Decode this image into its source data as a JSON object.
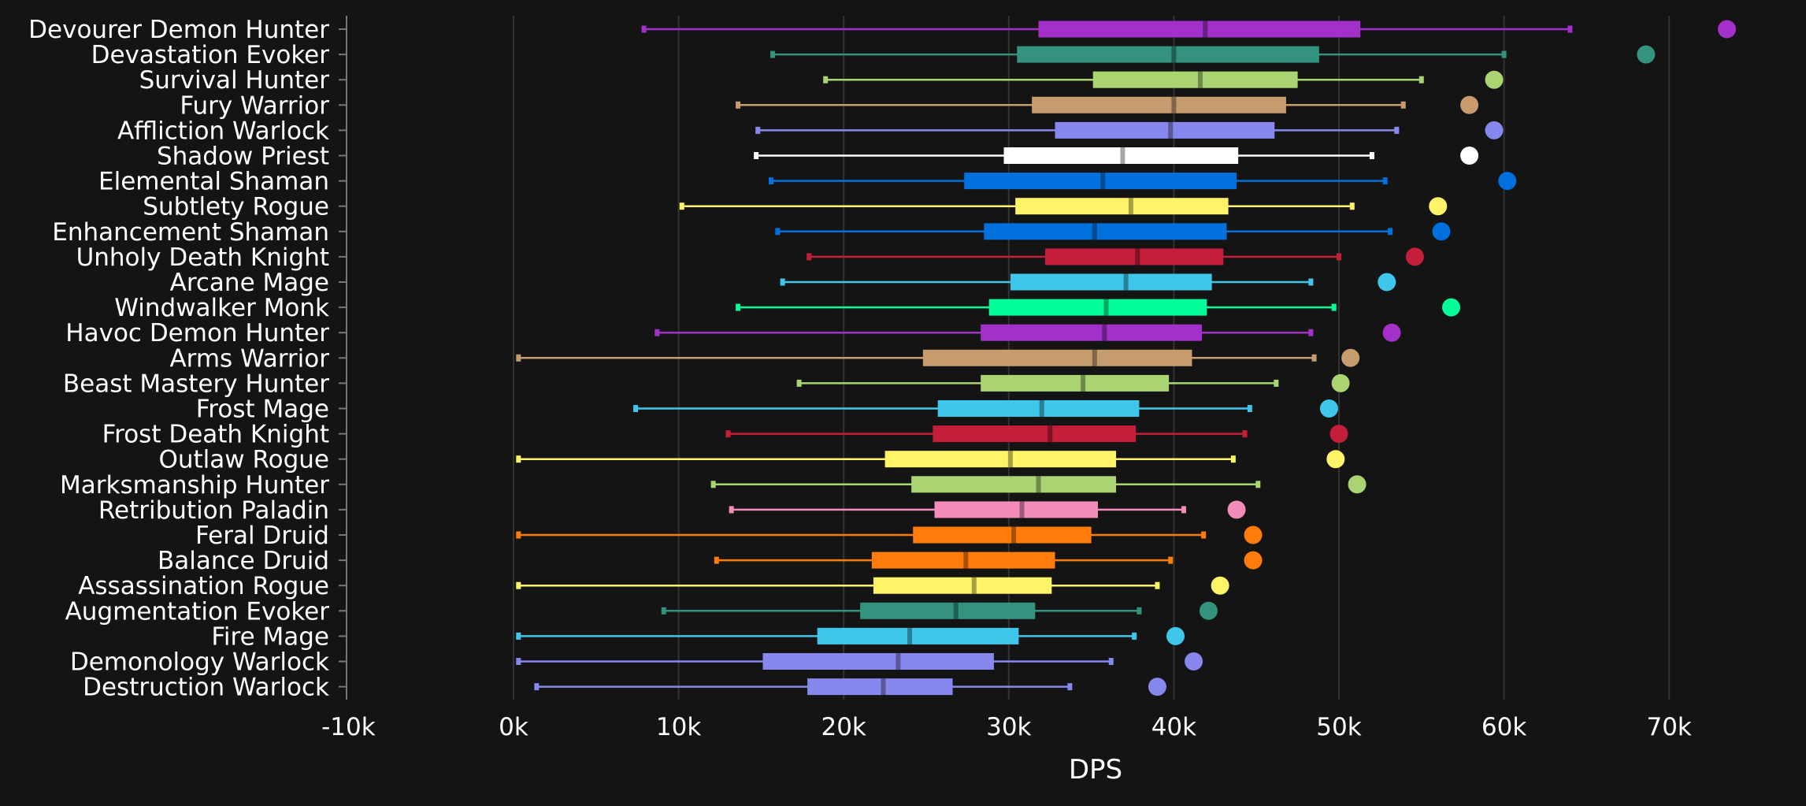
{
  "chart_data": {
    "type": "box",
    "xlabel": "DPS",
    "xlim": [
      -10000,
      75000
    ],
    "x_ticks": [
      -10000,
      0,
      10000,
      20000,
      30000,
      40000,
      50000,
      60000,
      70000
    ],
    "x_tick_labels": [
      "-10k",
      "0k",
      "10k",
      "20k",
      "30k",
      "40k",
      "50k",
      "60k",
      "70k"
    ],
    "grid": "vertical",
    "series": [
      {
        "name": "Devourer Demon Hunter",
        "color": "#A330C9",
        "min": 7900,
        "q1": 31800,
        "median": 41900,
        "q3": 51300,
        "max": 64000,
        "outlier": 73500
      },
      {
        "name": "Devastation Evoker",
        "color": "#33937F",
        "min": 15700,
        "q1": 30500,
        "median": 40000,
        "q3": 48800,
        "max": 60000,
        "outlier": 68600
      },
      {
        "name": "Survival Hunter",
        "color": "#AAD372",
        "min": 18900,
        "q1": 35100,
        "median": 41600,
        "q3": 47500,
        "max": 55000,
        "outlier": 59400
      },
      {
        "name": "Fury Warrior",
        "color": "#C69B6D",
        "min": 13600,
        "q1": 31400,
        "median": 40000,
        "q3": 46800,
        "max": 53900,
        "outlier": 57900
      },
      {
        "name": "Affliction Warlock",
        "color": "#8788EE",
        "min": 14800,
        "q1": 32800,
        "median": 39800,
        "q3": 46100,
        "max": 53500,
        "outlier": 59400
      },
      {
        "name": "Shadow Priest",
        "color": "#FFFFFF",
        "min": 14700,
        "q1": 29700,
        "median": 36900,
        "q3": 43900,
        "max": 52000,
        "outlier": 57900
      },
      {
        "name": "Elemental Shaman",
        "color": "#0070DD",
        "min": 15600,
        "q1": 27300,
        "median": 35700,
        "q3": 43800,
        "max": 52800,
        "outlier": 60200
      },
      {
        "name": "Subtlety Rogue",
        "color": "#FFF468",
        "min": 10200,
        "q1": 30400,
        "median": 37400,
        "q3": 43300,
        "max": 50800,
        "outlier": 56000
      },
      {
        "name": "Enhancement Shaman",
        "color": "#0070DD",
        "min": 16000,
        "q1": 28500,
        "median": 35200,
        "q3": 43200,
        "max": 53100,
        "outlier": 56200
      },
      {
        "name": "Unholy Death Knight",
        "color": "#C41E3A",
        "min": 17900,
        "q1": 32200,
        "median": 37800,
        "q3": 43000,
        "max": 50000,
        "outlier": 54600
      },
      {
        "name": "Arcane Mage",
        "color": "#3FC7EB",
        "min": 16300,
        "q1": 30100,
        "median": 37100,
        "q3": 42300,
        "max": 48300,
        "outlier": 52900
      },
      {
        "name": "Windwalker Monk",
        "color": "#00FF98",
        "min": 13600,
        "q1": 28800,
        "median": 35900,
        "q3": 42000,
        "max": 49700,
        "outlier": 56800
      },
      {
        "name": "Havoc Demon Hunter",
        "color": "#A330C9",
        "min": 8700,
        "q1": 28300,
        "median": 35800,
        "q3": 41700,
        "max": 48300,
        "outlier": 53200
      },
      {
        "name": "Arms Warrior",
        "color": "#C69B6D",
        "min": 300,
        "q1": 24800,
        "median": 35200,
        "q3": 41100,
        "max": 48500,
        "outlier": 50700
      },
      {
        "name": "Beast Mastery Hunter",
        "color": "#AAD372",
        "min": 17300,
        "q1": 28300,
        "median": 34500,
        "q3": 39700,
        "max": 46200,
        "outlier": 50100
      },
      {
        "name": "Frost Mage",
        "color": "#3FC7EB",
        "min": 7400,
        "q1": 25700,
        "median": 32000,
        "q3": 37900,
        "max": 44600,
        "outlier": 49400
      },
      {
        "name": "Frost Death Knight",
        "color": "#C41E3A",
        "min": 13000,
        "q1": 25400,
        "median": 32500,
        "q3": 37700,
        "max": 44300,
        "outlier": 50000
      },
      {
        "name": "Outlaw Rogue",
        "color": "#FFF468",
        "min": 300,
        "q1": 22500,
        "median": 30100,
        "q3": 36500,
        "max": 43600,
        "outlier": 49800
      },
      {
        "name": "Marksmanship Hunter",
        "color": "#AAD372",
        "min": 12100,
        "q1": 24100,
        "median": 31800,
        "q3": 36500,
        "max": 45100,
        "outlier": 51100
      },
      {
        "name": "Retribution Paladin",
        "color": "#F48CBA",
        "min": 13200,
        "q1": 25500,
        "median": 30800,
        "q3": 35400,
        "max": 40600,
        "outlier": 43800
      },
      {
        "name": "Feral Druid",
        "color": "#FF7C0A",
        "min": 300,
        "q1": 24200,
        "median": 30300,
        "q3": 35000,
        "max": 41800,
        "outlier": 44800
      },
      {
        "name": "Balance Druid",
        "color": "#FF7C0A",
        "min": 12300,
        "q1": 21700,
        "median": 27400,
        "q3": 32800,
        "max": 39800,
        "outlier": 44800
      },
      {
        "name": "Assassination Rogue",
        "color": "#FFF468",
        "min": 300,
        "q1": 21800,
        "median": 27900,
        "q3": 32600,
        "max": 39000,
        "outlier": 42800
      },
      {
        "name": "Augmentation Evoker",
        "color": "#33937F",
        "min": 9100,
        "q1": 21000,
        "median": 26800,
        "q3": 31600,
        "max": 37900,
        "outlier": 42100
      },
      {
        "name": "Fire Mage",
        "color": "#3FC7EB",
        "min": 300,
        "q1": 18400,
        "median": 24000,
        "q3": 30600,
        "max": 37600,
        "outlier": 40100
      },
      {
        "name": "Demonology Warlock",
        "color": "#8788EE",
        "min": 300,
        "q1": 15100,
        "median": 23300,
        "q3": 29100,
        "max": 36200,
        "outlier": 41200
      },
      {
        "name": "Destruction Warlock",
        "color": "#8788EE",
        "min": 1400,
        "q1": 17800,
        "median": 22400,
        "q3": 26600,
        "max": 33700,
        "outlier": 39000
      }
    ]
  }
}
